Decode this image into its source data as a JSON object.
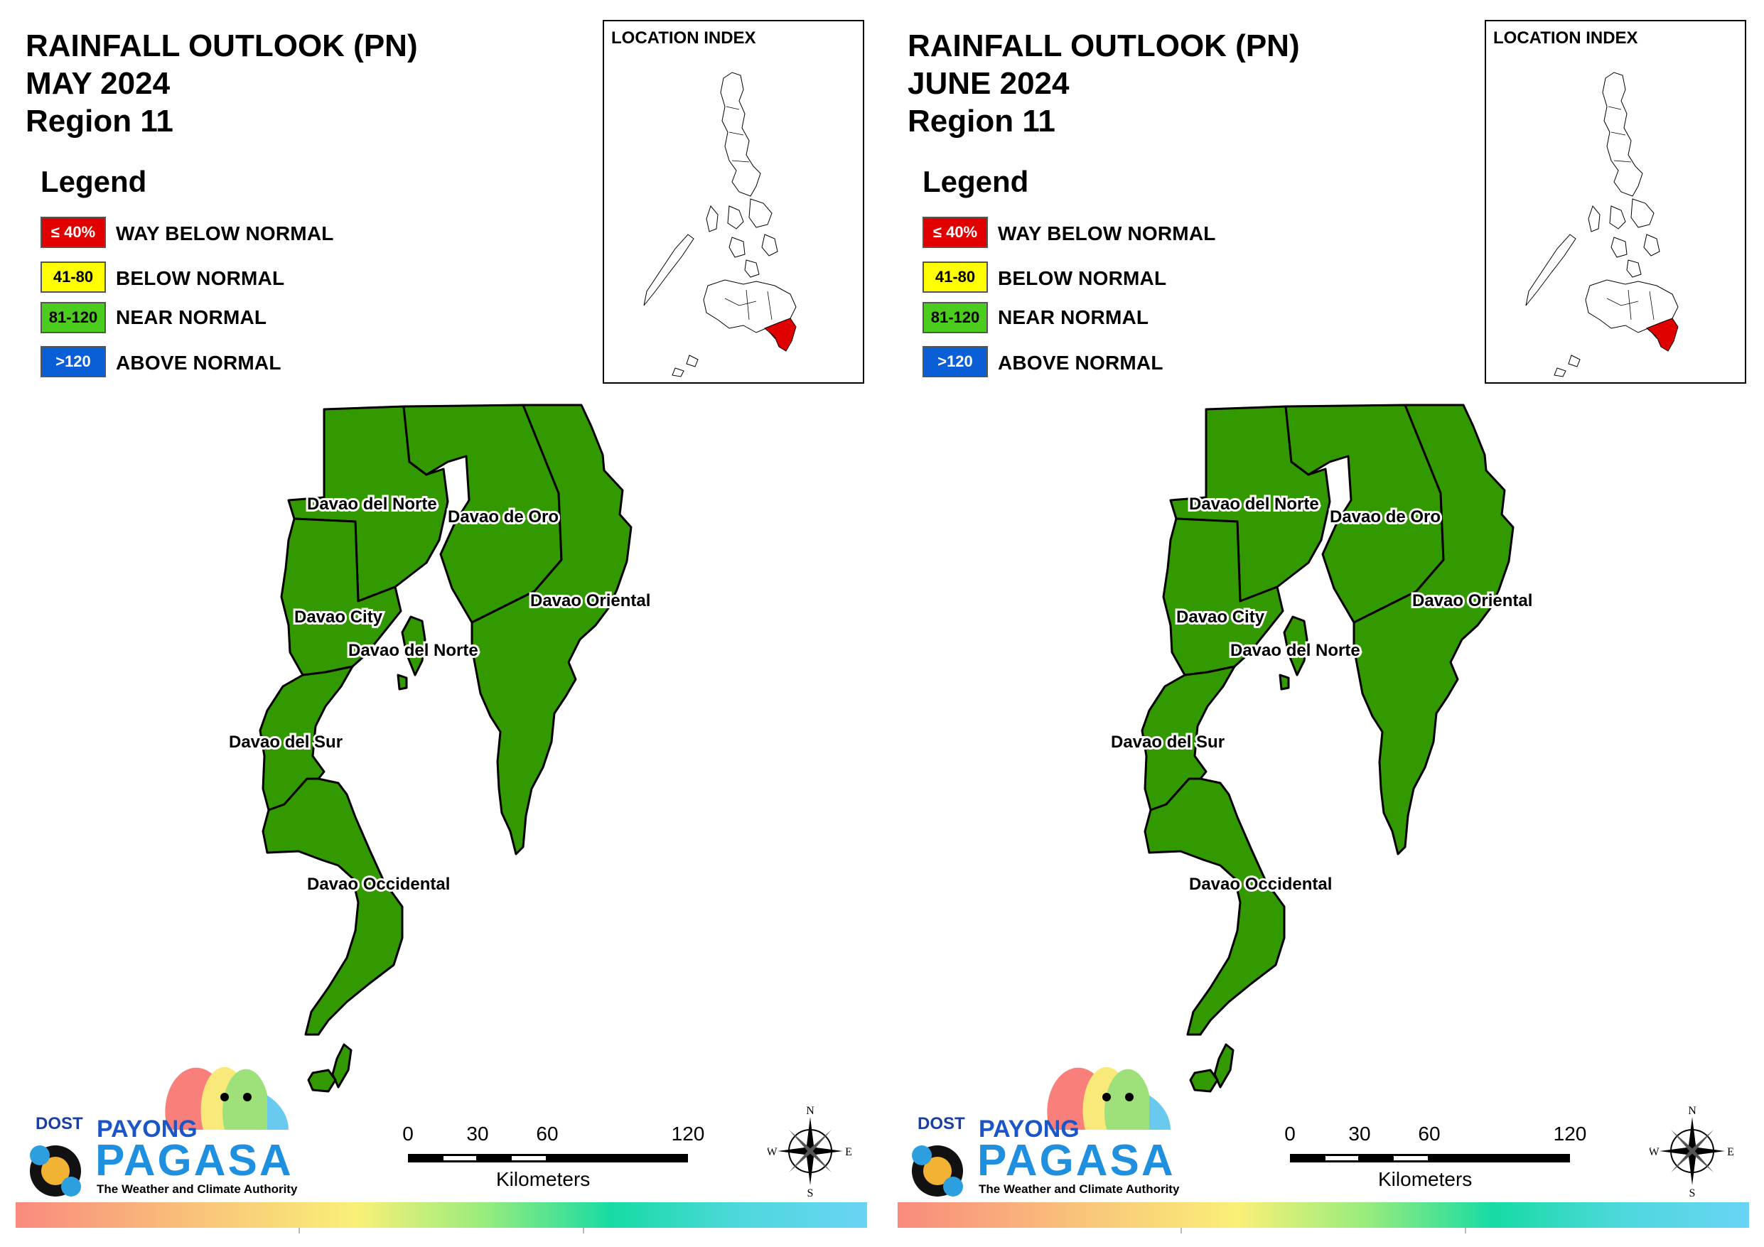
{
  "panels": [
    {
      "title_line1": "RAINFALL OUTLOOK (PN)",
      "title_line2": "MAY 2024",
      "title_line3": "Region 11",
      "legend": {
        "title": "Legend",
        "items": [
          {
            "swatch": "≤ 40%",
            "label": "WAY BELOW NORMAL",
            "color": "#e00000",
            "text_color": "#ffffff"
          },
          {
            "swatch": "41-80",
            "label": "BELOW NORMAL",
            "color": "#ffff00",
            "text_color": "#000000"
          },
          {
            "swatch": "81-120",
            "label": "NEAR NORMAL",
            "color": "#4ccc1c",
            "text_color": "#000000"
          },
          {
            "swatch": ">120",
            "label": "ABOVE NORMAL",
            "color": "#0a5fd6",
            "text_color": "#ffffff"
          }
        ]
      },
      "location_index": {
        "title": "LOCATION INDEX",
        "highlight_color": "#e00000"
      },
      "map": {
        "fill_color": "#339900",
        "category": "NEAR NORMAL",
        "labels": {
          "davao_del_norte": "Davao del Norte",
          "davao_de_oro": "Davao de Oro",
          "davao_oriental": "Davao Oriental",
          "davao_city": "Davao City",
          "davao_del_norte_2": "Davao del Norte",
          "davao_del_sur": "Davao del Sur",
          "davao_occidental": "Davao Occidental"
        }
      },
      "scale": {
        "ticks": [
          "0",
          "30",
          "60",
          "120"
        ],
        "unit": "Kilometers"
      },
      "compass": {
        "n": "N",
        "e": "E",
        "s": "S",
        "w": "W"
      },
      "logo": {
        "dost": "DOST",
        "payong": "PAYONG",
        "pagasa": "PAGASA",
        "tagline": "The Weather and Climate Authority"
      }
    },
    {
      "title_line1": "RAINFALL OUTLOOK (PN)",
      "title_line2": "JUNE 2024",
      "title_line3": "Region 11",
      "legend": {
        "title": "Legend",
        "items": [
          {
            "swatch": "≤ 40%",
            "label": "WAY BELOW NORMAL",
            "color": "#e00000",
            "text_color": "#ffffff"
          },
          {
            "swatch": "41-80",
            "label": "BELOW NORMAL",
            "color": "#ffff00",
            "text_color": "#000000"
          },
          {
            "swatch": "81-120",
            "label": "NEAR NORMAL",
            "color": "#4ccc1c",
            "text_color": "#000000"
          },
          {
            "swatch": ">120",
            "label": "ABOVE NORMAL",
            "color": "#0a5fd6",
            "text_color": "#ffffff"
          }
        ]
      },
      "location_index": {
        "title": "LOCATION INDEX",
        "highlight_color": "#e00000"
      },
      "map": {
        "fill_color": "#339900",
        "category": "NEAR NORMAL",
        "labels": {
          "davao_del_norte": "Davao del Norte",
          "davao_de_oro": "Davao de Oro",
          "davao_oriental": "Davao Oriental",
          "davao_city": "Davao City",
          "davao_del_norte_2": "Davao del Norte",
          "davao_del_sur": "Davao del Sur",
          "davao_occidental": "Davao Occidental"
        }
      },
      "scale": {
        "ticks": [
          "0",
          "30",
          "60",
          "120"
        ],
        "unit": "Kilometers"
      },
      "compass": {
        "n": "N",
        "e": "E",
        "s": "S",
        "w": "W"
      },
      "logo": {
        "dost": "DOST",
        "payong": "PAYONG",
        "pagasa": "PAGASA",
        "tagline": "The Weather and Climate Authority"
      }
    }
  ]
}
